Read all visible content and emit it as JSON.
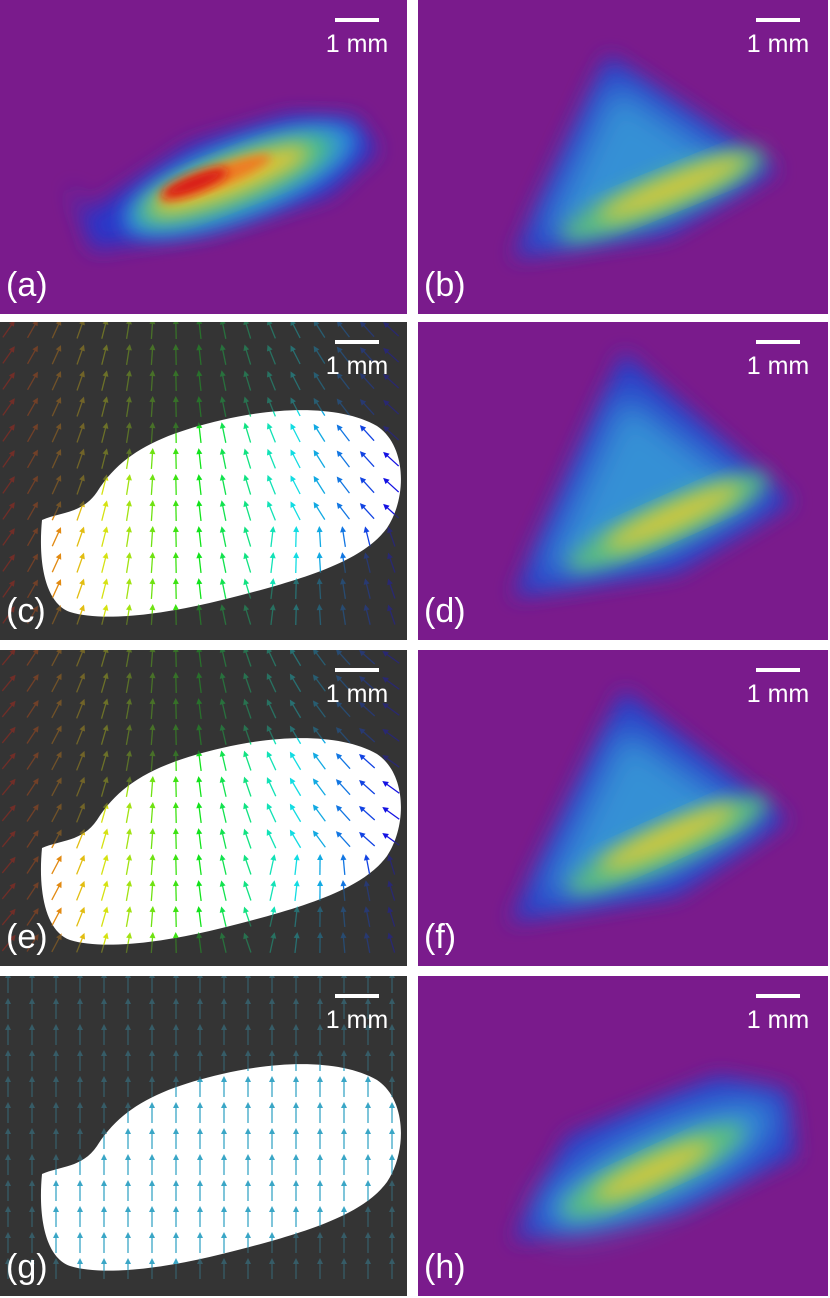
{
  "panels": [
    {
      "label": "(a)",
      "scale_bar": "1 mm"
    },
    {
      "label": "(b)",
      "scale_bar": "1 mm"
    },
    {
      "label": "(c)",
      "scale_bar": "1 mm"
    },
    {
      "label": "(d)",
      "scale_bar": "1 mm"
    },
    {
      "label": "(e)",
      "scale_bar": "1 mm"
    },
    {
      "label": "(f)",
      "scale_bar": "1 mm"
    },
    {
      "label": "(g)",
      "scale_bar": "1 mm"
    },
    {
      "label": "(h)",
      "scale_bar": "1 mm"
    }
  ]
}
